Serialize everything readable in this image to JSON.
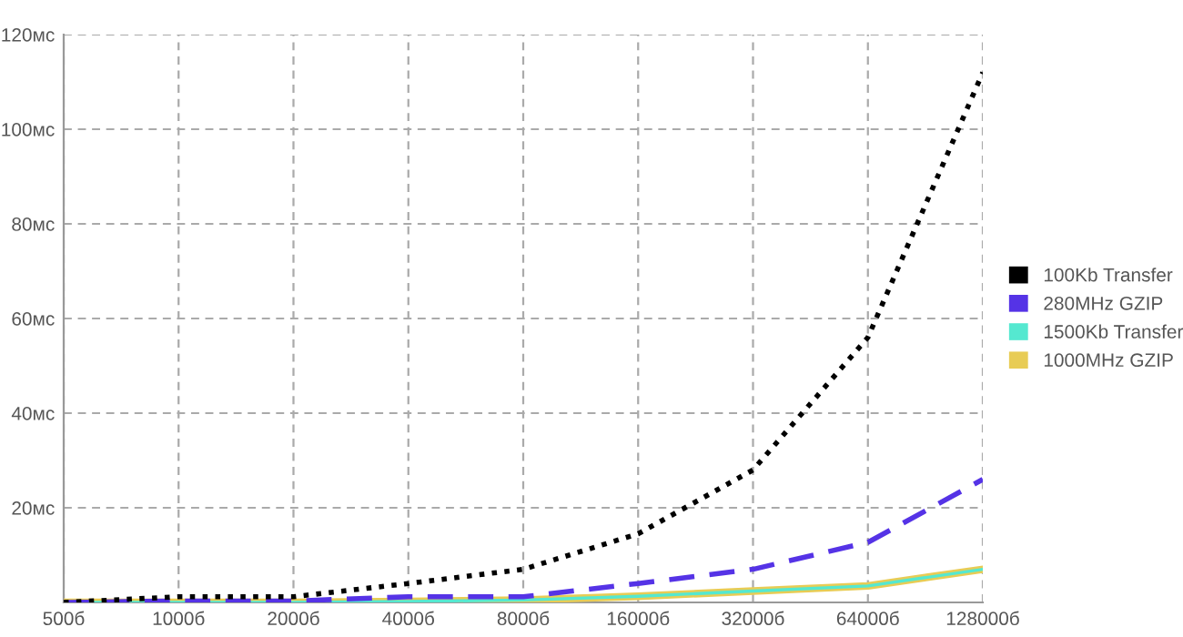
{
  "chart_data": {
    "type": "line",
    "categories": [
      "500б",
      "1000б",
      "2000б",
      "4000б",
      "8000б",
      "16000б",
      "32000б",
      "64000б",
      "128000б"
    ],
    "series": [
      {
        "name": "100Kb Transfer",
        "color": "#000000",
        "line_style": "dotted",
        "values": [
          0,
          1.2,
          1.2,
          4,
          7,
          14.5,
          28,
          56,
          112
        ]
      },
      {
        "name": "280MHz GZIP",
        "color": "#5533e6",
        "line_style": "dashed",
        "values": [
          0,
          0.3,
          0.3,
          1.2,
          1.2,
          4,
          7,
          12.7,
          26
        ]
      },
      {
        "name": "1500Kb Transfer",
        "color": "#55e8d0",
        "line_style": "solid",
        "values": [
          0,
          0,
          0,
          0.2,
          0.5,
          1.3,
          2.4,
          3.5,
          7
        ]
      },
      {
        "name": "1000MHz GZIP",
        "color": "#e8cc55",
        "line_style": "solid",
        "values": [
          0,
          0,
          0,
          0.2,
          0.5,
          1.3,
          2.4,
          3.5,
          7
        ]
      }
    ],
    "ylim": [
      0,
      120
    ],
    "yticks": [
      {
        "value": 20,
        "label": "20мс"
      },
      {
        "value": 40,
        "label": "40мс"
      },
      {
        "value": 60,
        "label": "60мс"
      },
      {
        "value": 80,
        "label": "80мс"
      },
      {
        "value": 100,
        "label": "100мс"
      },
      {
        "value": 120,
        "label": "120мс"
      }
    ],
    "grid": true,
    "legend": "right"
  }
}
